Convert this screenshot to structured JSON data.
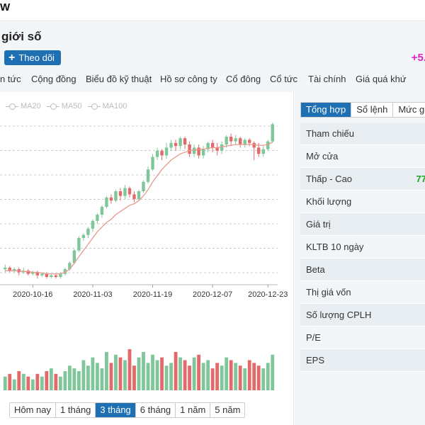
{
  "topbar": {
    "ticker": "W"
  },
  "header": {
    "company_name": "giới số",
    "follow_label": "Theo dõi",
    "price_change": "+5."
  },
  "tabs": [
    "n tức",
    "Cộng đồng",
    "Biểu đồ kỹ thuật",
    "Hồ sơ công ty",
    "Cổ đông",
    "Cổ tức",
    "Tài chính",
    "Giá quá khứ"
  ],
  "chart": {
    "ma_legend": [
      "MA20",
      "MA50",
      "MA100"
    ],
    "x_ticks": [
      "2020-10-16",
      "2020-11-03",
      "2020-11-19",
      "2020-12-07",
      "2020-12-23"
    ],
    "colors": {
      "up": "#7fc79a",
      "down": "#e26a6a",
      "ma": "#e59a8c",
      "grid": "#cccccc"
    }
  },
  "chart_data": {
    "type": "candlestick",
    "x_ticks": [
      "2020-10-16",
      "2020-11-03",
      "2020-11-19",
      "2020-12-07",
      "2020-12-23"
    ],
    "ma_label": "MA20",
    "candles": [
      [
        40,
        41,
        38,
        43
      ],
      [
        41,
        39,
        38,
        42
      ],
      [
        39,
        40,
        38,
        41
      ],
      [
        40,
        38,
        36,
        41
      ],
      [
        38,
        39,
        37,
        41
      ],
      [
        39,
        37,
        36,
        40
      ],
      [
        37,
        38,
        36,
        39
      ],
      [
        38,
        36,
        34,
        39
      ],
      [
        36,
        37,
        35,
        38
      ],
      [
        37,
        35,
        34,
        38
      ],
      [
        35,
        36,
        34,
        37
      ],
      [
        36,
        35,
        34,
        37
      ],
      [
        35,
        37,
        34,
        38
      ],
      [
        37,
        40,
        36,
        41
      ],
      [
        40,
        44,
        39,
        45
      ],
      [
        44,
        52,
        43,
        53
      ],
      [
        52,
        60,
        51,
        61
      ],
      [
        60,
        62,
        58,
        63
      ],
      [
        62,
        66,
        60,
        67
      ],
      [
        66,
        71,
        64,
        72
      ],
      [
        71,
        75,
        69,
        76
      ],
      [
        75,
        80,
        73,
        81
      ],
      [
        80,
        86,
        79,
        87
      ],
      [
        86,
        84,
        82,
        88
      ],
      [
        84,
        90,
        83,
        91
      ],
      [
        90,
        87,
        84,
        92
      ],
      [
        87,
        92,
        85,
        94
      ],
      [
        92,
        88,
        86,
        93
      ],
      [
        88,
        85,
        83,
        90
      ],
      [
        85,
        90,
        84,
        91
      ],
      [
        90,
        96,
        89,
        97
      ],
      [
        96,
        104,
        95,
        106
      ],
      [
        104,
        112,
        103,
        114
      ],
      [
        112,
        116,
        110,
        118
      ],
      [
        116,
        113,
        110,
        117
      ],
      [
        113,
        118,
        111,
        121
      ],
      [
        118,
        121,
        116,
        123
      ],
      [
        121,
        119,
        116,
        123
      ],
      [
        119,
        124,
        117,
        125
      ],
      [
        124,
        120,
        117,
        125
      ],
      [
        120,
        114,
        112,
        122
      ],
      [
        114,
        118,
        112,
        120
      ],
      [
        118,
        113,
        111,
        120
      ],
      [
        113,
        117,
        111,
        119
      ],
      [
        117,
        121,
        115,
        122
      ],
      [
        121,
        118,
        115,
        123
      ],
      [
        118,
        116,
        113,
        121
      ],
      [
        116,
        120,
        114,
        122
      ],
      [
        120,
        125,
        118,
        126
      ],
      [
        125,
        122,
        119,
        127
      ],
      [
        122,
        124,
        120,
        126
      ],
      [
        124,
        120,
        118,
        125
      ],
      [
        120,
        123,
        118,
        124
      ],
      [
        123,
        121,
        119,
        124
      ],
      [
        121,
        118,
        110,
        122
      ],
      [
        118,
        114,
        112,
        121
      ],
      [
        114,
        117,
        112,
        119
      ],
      [
        117,
        122,
        116,
        123
      ],
      [
        122,
        133,
        121,
        134
      ]
    ],
    "volume": [
      5,
      6,
      4,
      7,
      6,
      5,
      4,
      6,
      5,
      7,
      8,
      6,
      5,
      7,
      9,
      8,
      7,
      11,
      9,
      12,
      10,
      8,
      14,
      10,
      13,
      12,
      11,
      15,
      9,
      12,
      14,
      10,
      13,
      11,
      12,
      9,
      10,
      14,
      12,
      11,
      9,
      12,
      13,
      10,
      11,
      8,
      10,
      9,
      12,
      11,
      10,
      9,
      8,
      11,
      10,
      9,
      8,
      10,
      13
    ],
    "ma": [
      39,
      39,
      39,
      39,
      38.5,
      38.5,
      38,
      38,
      37.5,
      37,
      37,
      37,
      37,
      38,
      40,
      44,
      48,
      52,
      56,
      60,
      64,
      67,
      70,
      72,
      75,
      77,
      79,
      81,
      82,
      84,
      87,
      91,
      96,
      100,
      104,
      107,
      110,
      112,
      114,
      115,
      116,
      116.5,
      117,
      117,
      117.5,
      118,
      118,
      118.5,
      119,
      119.5,
      120,
      120,
      120,
      120,
      120,
      119.5,
      119.5,
      120,
      121.5
    ],
    "ylim": [
      30,
      140
    ]
  },
  "range_buttons": [
    "Hôm nay",
    "1 tháng",
    "3 tháng",
    "6 tháng",
    "1 năm",
    "5 năm"
  ],
  "range_active": 2,
  "side_panel": {
    "tabs": [
      "Tổng hợp",
      "Sổ lệnh",
      "Mức giá"
    ],
    "rows": [
      {
        "label": "Tham chiếu",
        "value": ""
      },
      {
        "label": "Mở cửa",
        "value": ""
      },
      {
        "label": "Thấp - Cao",
        "value": "77"
      },
      {
        "label": "Khối lượng",
        "value": ""
      },
      {
        "label": "Giá trị",
        "value": ""
      },
      {
        "label": "KLTB 10 ngày",
        "value": ""
      },
      {
        "label": "Beta",
        "value": ""
      },
      {
        "label": "Thị giá vốn",
        "value": ""
      },
      {
        "label": "Số lượng CPLH",
        "value": ""
      },
      {
        "label": "P/E",
        "value": ""
      },
      {
        "label": "EPS",
        "value": ""
      }
    ]
  }
}
